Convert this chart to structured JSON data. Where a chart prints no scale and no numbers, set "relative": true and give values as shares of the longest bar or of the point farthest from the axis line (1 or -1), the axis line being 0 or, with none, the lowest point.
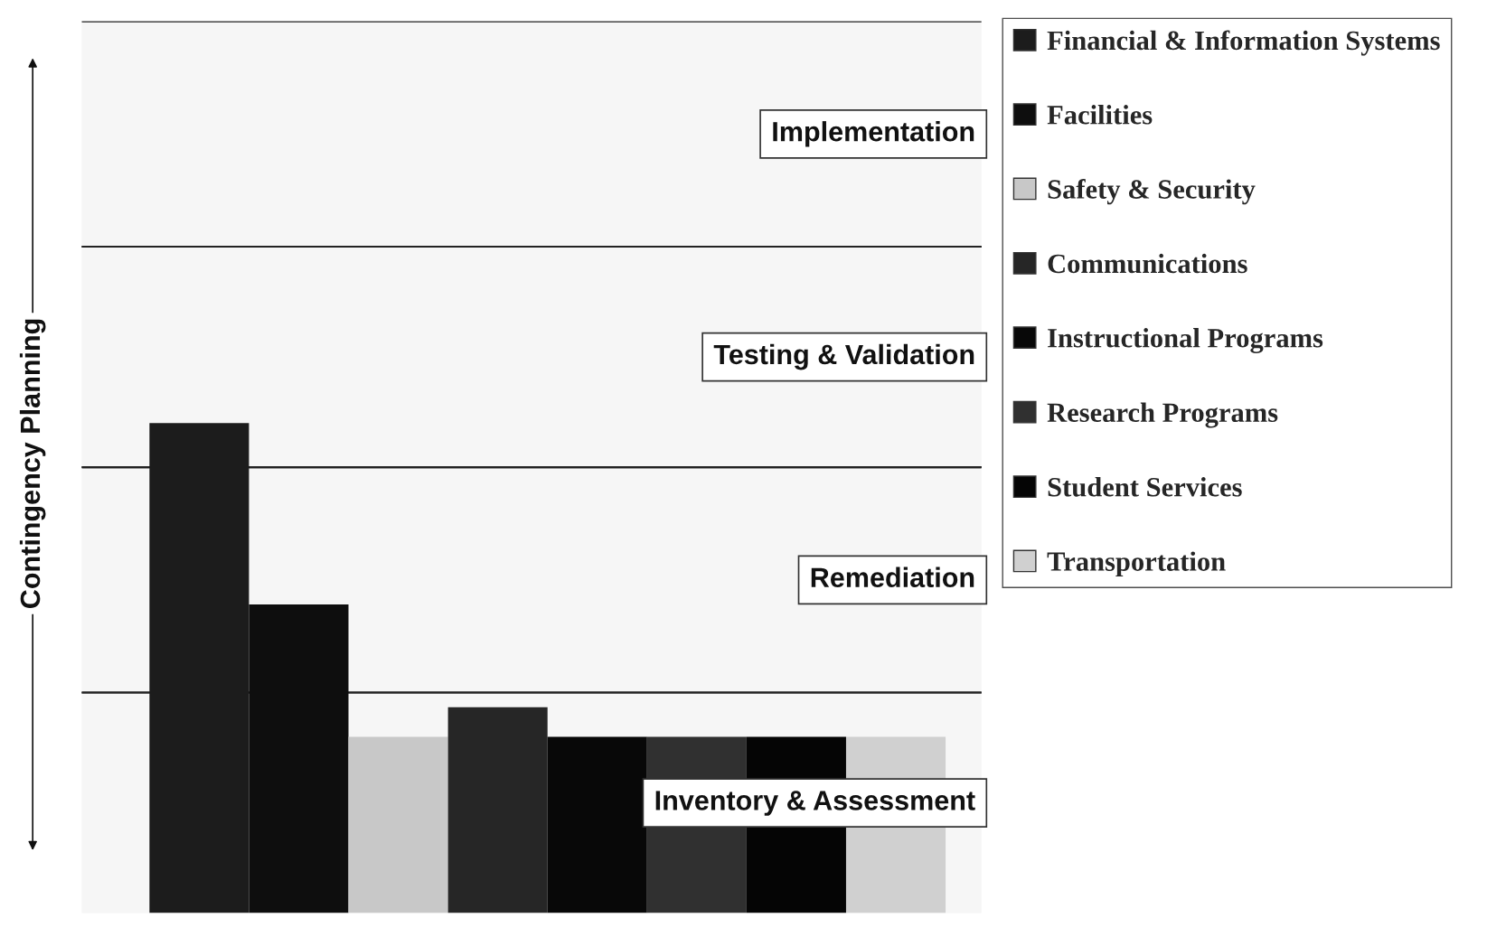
{
  "chart_data": {
    "type": "bar",
    "relative": true,
    "stacked": true,
    "ylabel": "Contingency Planning",
    "categories": [
      null,
      null,
      null,
      null,
      null,
      null,
      null,
      null
    ],
    "series": [
      {
        "name": "Financial & Information Systems",
        "color": "#1c1c1c",
        "values": [
          1,
          0,
          0,
          0,
          0,
          0,
          0,
          0
        ]
      },
      {
        "name": "Facilities",
        "color": "#0e0e0e",
        "values": [
          0,
          0.63,
          0,
          0,
          0,
          0,
          0,
          0
        ]
      },
      {
        "name": "Safety & Security",
        "color": "#c8c8c8",
        "values": [
          0,
          0,
          0.36,
          0,
          0,
          0,
          0,
          0
        ]
      },
      {
        "name": "Communications",
        "color": "#262626",
        "values": [
          0,
          0,
          0,
          0.42,
          0,
          0,
          0,
          0
        ]
      },
      {
        "name": "Instructional Programs",
        "color": "#080808",
        "values": [
          0,
          0,
          0,
          0,
          0.36,
          0,
          0,
          0
        ]
      },
      {
        "name": "Research Programs",
        "color": "#303030",
        "values": [
          0,
          0,
          0,
          0,
          0,
          0.36,
          0,
          0
        ]
      },
      {
        "name": "Student Services",
        "color": "#050505",
        "values": [
          0,
          0,
          0,
          0,
          0,
          0,
          0.36,
          0
        ]
      },
      {
        "name": "Transportation",
        "color": "#d0d0d0",
        "values": [
          0,
          0,
          0,
          0,
          0,
          0,
          0,
          0.36
        ]
      }
    ],
    "bands": [
      {
        "axis": "y",
        "from": 0,
        "to": 0.45,
        "label": "Inventory & Assessment",
        "color": "#f6f6f6"
      },
      {
        "axis": "y",
        "from": 0.45,
        "to": 0.91,
        "label": "Remediation",
        "color": "#f6f6f6"
      },
      {
        "axis": "y",
        "from": 0.91,
        "to": 1.36,
        "label": "Testing & Validation",
        "color": "#f6f6f6"
      },
      {
        "axis": "y",
        "from": 1.36,
        "to": 1.82,
        "label": "Implementation",
        "color": "#f6f6f6"
      }
    ],
    "legend": "right"
  }
}
